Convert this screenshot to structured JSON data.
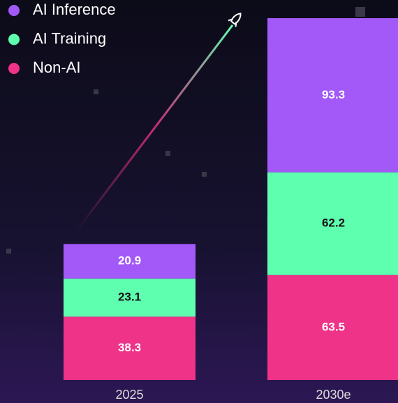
{
  "chart_data": {
    "type": "stacked-bar",
    "categories": [
      "2025",
      "2030e"
    ],
    "series": [
      {
        "name": "AI Inference",
        "color": "#a259f7",
        "values": [
          20.9,
          93.3
        ]
      },
      {
        "name": "AI Training",
        "color": "#5fffb0",
        "values": [
          23.1,
          62.2
        ]
      },
      {
        "name": "Non-AI",
        "color": "#ee3388",
        "values": [
          38.3,
          63.5
        ]
      }
    ]
  }
}
